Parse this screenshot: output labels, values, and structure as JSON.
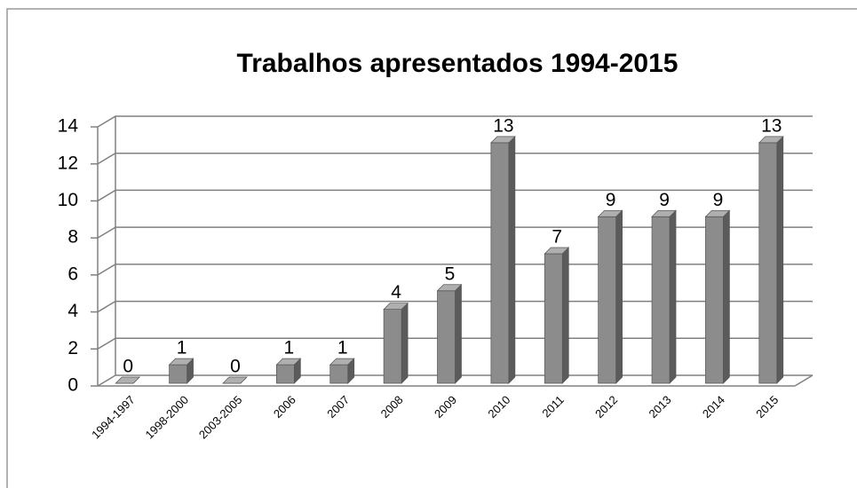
{
  "chart_data": {
    "type": "bar3d",
    "title": "Trabalhos apresentados 1994-2015",
    "categories": [
      "1994-1997",
      "1998-2000",
      "2003-2005",
      "2006",
      "2007",
      "2008",
      "2009",
      "2010",
      "2011",
      "2012",
      "2013",
      "2014",
      "2015"
    ],
    "values": [
      0,
      1,
      0,
      1,
      1,
      4,
      5,
      13,
      7,
      9,
      9,
      9,
      13
    ],
    "color": "#8c8c8c",
    "ylim": [
      0,
      14
    ],
    "yticks": [
      0,
      2,
      4,
      6,
      8,
      10,
      12,
      14
    ],
    "grid": true
  }
}
